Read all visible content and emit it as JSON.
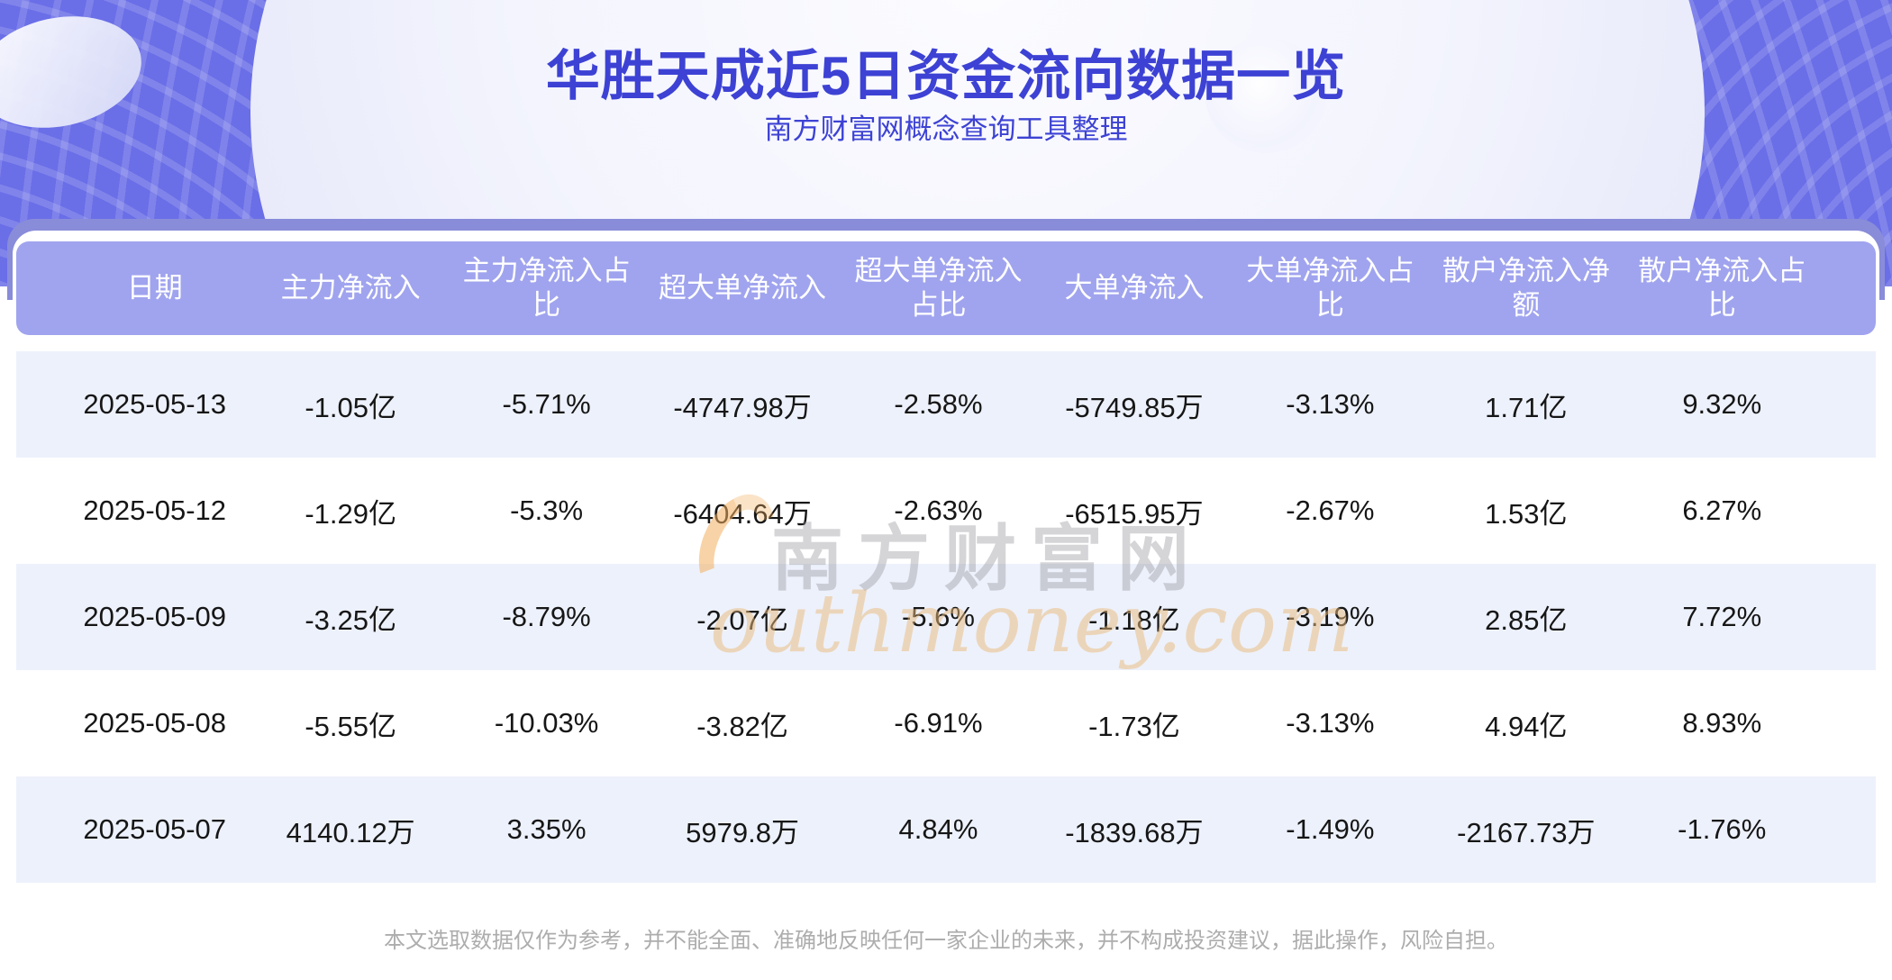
{
  "header": {
    "title": "华胜天成近5日资金流向数据一览",
    "subtitle": "南方财富网概念查询工具整理"
  },
  "table": {
    "columns": [
      "日期",
      "主力净流入",
      "主力净流入占\n比",
      "超大单净流入",
      "超大单净流入\n占比",
      "大单净流入",
      "大单净流入占\n比",
      "散户净流入净\n额",
      "散户净流入占\n比"
    ],
    "rows": [
      [
        "2025-05-13",
        "-1.05亿",
        "-5.71%",
        "-4747.98万",
        "-2.58%",
        "-5749.85万",
        "-3.13%",
        "1.71亿",
        "9.32%"
      ],
      [
        "2025-05-12",
        "-1.29亿",
        "-5.3%",
        "-6404.64万",
        "-2.63%",
        "-6515.95万",
        "-2.67%",
        "1.53亿",
        "6.27%"
      ],
      [
        "2025-05-09",
        "-3.25亿",
        "-8.79%",
        "-2.07亿",
        "-5.6%",
        "-1.18亿",
        "-3.19%",
        "2.85亿",
        "7.72%"
      ],
      [
        "2025-05-08",
        "-5.55亿",
        "-10.03%",
        "-3.82亿",
        "-6.91%",
        "-1.73亿",
        "-3.13%",
        "4.94亿",
        "8.93%"
      ],
      [
        "2025-05-07",
        "4140.12万",
        "3.35%",
        "5979.8万",
        "4.84%",
        "-1839.68万",
        "-1.49%",
        "-2167.73万",
        "-1.76%"
      ]
    ]
  },
  "watermark": {
    "cjk": "南方财富网",
    "latin": "outhmoney.com"
  },
  "footer": {
    "disclaimer": "本文选取数据仅作为参考，并不能全面、准确地反映任何一家企业的未来，并不构成投资建议，据此操作，风险自担。"
  },
  "colors": {
    "hero": "#6a6ee7",
    "band": "#898cd9",
    "thead": "#a0a4ee",
    "rowalt": "#edf1fb",
    "accent": "#3d42d4",
    "celltext": "#161616",
    "foot": "#adadad"
  }
}
